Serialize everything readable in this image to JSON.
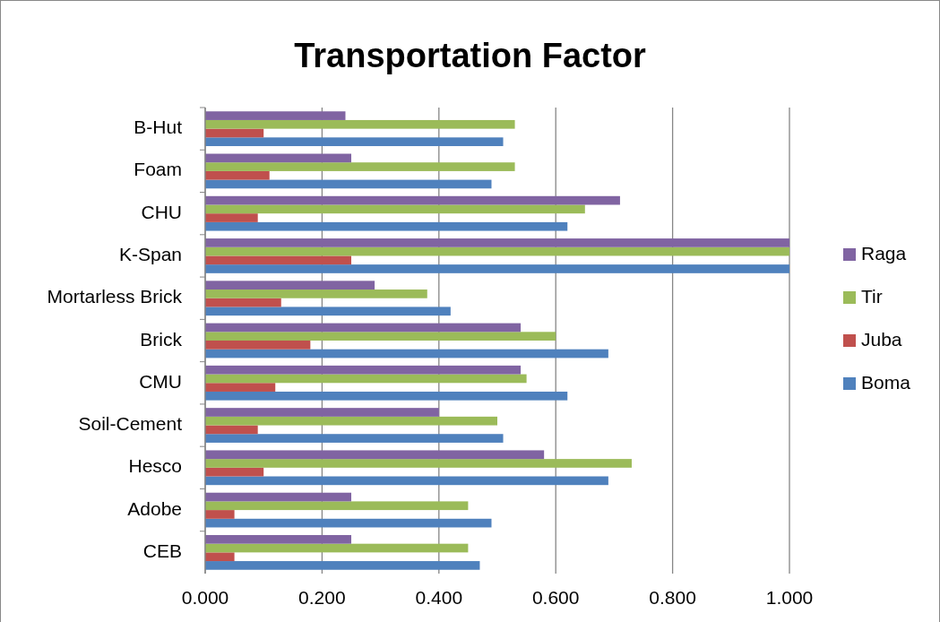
{
  "chart_data": {
    "type": "bar",
    "orientation": "horizontal",
    "title": "Transportation Factor",
    "categories": [
      "B-Hut",
      "Foam",
      "CHU",
      "K-Span",
      "Mortarless Brick",
      "Brick",
      "CMU",
      "Soil-Cement",
      "Hesco",
      "Adobe",
      "CEB"
    ],
    "series": [
      {
        "name": "Boma",
        "color": "#4f81bd",
        "values": [
          0.51,
          0.49,
          0.62,
          1.0,
          0.42,
          0.69,
          0.62,
          0.51,
          0.69,
          0.49,
          0.47
        ]
      },
      {
        "name": "Juba",
        "color": "#c0504d",
        "values": [
          0.1,
          0.11,
          0.09,
          0.25,
          0.13,
          0.18,
          0.12,
          0.09,
          0.1,
          0.05,
          0.05
        ]
      },
      {
        "name": "Tir",
        "color": "#9bbb59",
        "values": [
          0.53,
          0.53,
          0.65,
          1.0,
          0.38,
          0.6,
          0.55,
          0.5,
          0.73,
          0.45,
          0.45
        ]
      },
      {
        "name": "Raga",
        "color": "#8064a2",
        "values": [
          0.24,
          0.25,
          0.71,
          1.0,
          0.29,
          0.54,
          0.54,
          0.4,
          0.58,
          0.25,
          0.25
        ]
      }
    ],
    "xlim": [
      0,
      1
    ],
    "xticks": [
      {
        "value": 0,
        "label": "0.000"
      },
      {
        "value": 0.2,
        "label": "0.200"
      },
      {
        "value": 0.4,
        "label": "0.400"
      },
      {
        "value": 0.6,
        "label": "0.600"
      },
      {
        "value": 0.8,
        "label": "0.800"
      },
      {
        "value": 1,
        "label": "1.000"
      }
    ],
    "grid": "x",
    "legend": "right"
  }
}
